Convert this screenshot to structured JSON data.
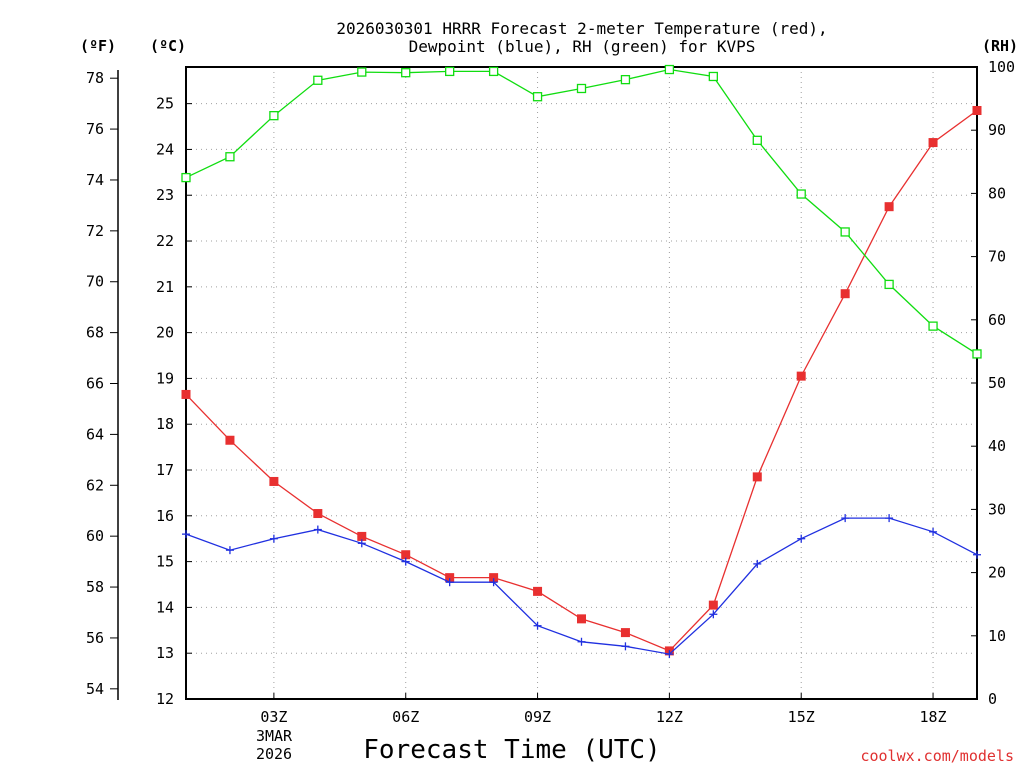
{
  "chart_data": {
    "type": "line",
    "title_line1": "2026030301 HRRR Forecast 2-meter Temperature (red),",
    "title_line2": "Dewpoint (blue), RH (green) for KVPS",
    "xlabel": "Forecast Time (UTC)",
    "credit": "coolwx.com/models",
    "units": {
      "fahrenheit": "(ºF)",
      "celsius": "(ºC)",
      "rh": "(RH)"
    },
    "x_hours": [
      1,
      2,
      3,
      4,
      5,
      6,
      7,
      8,
      9,
      10,
      11,
      12,
      13,
      14,
      15,
      16,
      17,
      18,
      19
    ],
    "xlim": [
      1,
      19
    ],
    "x_ticks": [
      {
        "hour": 3,
        "label": "03Z"
      },
      {
        "hour": 6,
        "label": "06Z"
      },
      {
        "hour": 9,
        "label": "09Z"
      },
      {
        "hour": 12,
        "label": "12Z"
      },
      {
        "hour": 15,
        "label": "15Z"
      },
      {
        "hour": 18,
        "label": "18Z"
      }
    ],
    "date_label": {
      "hour": 3,
      "day": "3MAR",
      "year": "2026"
    },
    "celsius_axis": {
      "min": 12,
      "max": 25.8,
      "ticks": [
        12,
        13,
        14,
        15,
        16,
        17,
        18,
        19,
        20,
        21,
        22,
        23,
        24,
        25
      ]
    },
    "fahrenheit_ticks": [
      54,
      56,
      58,
      60,
      62,
      64,
      66,
      68,
      70,
      72,
      74,
      76,
      78
    ],
    "rh_axis": {
      "min": 0,
      "max": 100,
      "ticks": [
        0,
        10,
        20,
        30,
        40,
        50,
        60,
        70,
        80,
        90,
        100
      ]
    },
    "series": [
      {
        "name": "Temperature",
        "axis": "celsius",
        "color": "#e83030",
        "marker": "filled-square",
        "values": [
          18.65,
          17.65,
          16.75,
          16.05,
          15.55,
          15.15,
          14.65,
          14.65,
          14.35,
          13.75,
          13.45,
          13.05,
          14.05,
          16.85,
          19.05,
          20.85,
          22.75,
          24.15,
          24.85
        ]
      },
      {
        "name": "Dewpoint",
        "axis": "celsius",
        "color": "#2030e0",
        "marker": "plus",
        "values": [
          15.6,
          15.25,
          15.5,
          15.7,
          15.4,
          15.0,
          14.55,
          14.55,
          13.6,
          13.25,
          13.15,
          12.98,
          13.85,
          14.95,
          15.5,
          15.95,
          15.95,
          15.65,
          15.15
        ]
      },
      {
        "name": "RH",
        "axis": "rh",
        "color": "#10dd10",
        "marker": "open-square",
        "values": [
          82.5,
          85.8,
          92.3,
          97.9,
          99.2,
          99.1,
          99.3,
          99.3,
          95.3,
          96.6,
          98.0,
          99.6,
          98.5,
          88.4,
          79.9,
          73.9,
          65.6,
          59.0,
          54.6
        ]
      }
    ]
  }
}
